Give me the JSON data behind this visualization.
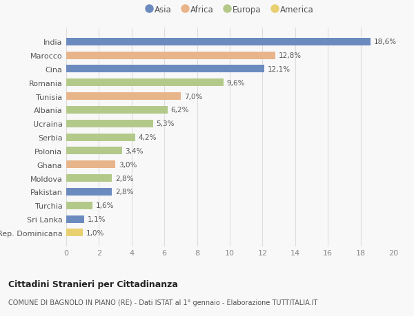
{
  "categories": [
    "India",
    "Marocco",
    "Cina",
    "Romania",
    "Tunisia",
    "Albania",
    "Ucraina",
    "Serbia",
    "Polonia",
    "Ghana",
    "Moldova",
    "Pakistan",
    "Turchia",
    "Sri Lanka",
    "Rep. Dominicana"
  ],
  "values": [
    18.6,
    12.8,
    12.1,
    9.6,
    7.0,
    6.2,
    5.3,
    4.2,
    3.4,
    3.0,
    2.8,
    2.8,
    1.6,
    1.1,
    1.0
  ],
  "labels": [
    "18,6%",
    "12,8%",
    "12,1%",
    "9,6%",
    "7,0%",
    "6,2%",
    "5,3%",
    "4,2%",
    "3,4%",
    "3,0%",
    "2,8%",
    "2,8%",
    "1,6%",
    "1,1%",
    "1,0%"
  ],
  "continents": [
    "Asia",
    "Africa",
    "Asia",
    "Europa",
    "Africa",
    "Europa",
    "Europa",
    "Europa",
    "Europa",
    "Africa",
    "Europa",
    "Asia",
    "Europa",
    "Asia",
    "America"
  ],
  "colors": {
    "Asia": "#6b8bbf",
    "Africa": "#e8b48a",
    "Europa": "#b3c98a",
    "America": "#e8d070"
  },
  "legend_order": [
    "Asia",
    "Africa",
    "Europa",
    "America"
  ],
  "title1": "Cittadini Stranieri per Cittadinanza",
  "title2": "COMUNE DI BAGNOLO IN PIANO (RE) - Dati ISTAT al 1° gennaio - Elaborazione TUTTITALIA.IT",
  "xlim": [
    0,
    20
  ],
  "xticks": [
    0,
    2,
    4,
    6,
    8,
    10,
    12,
    14,
    16,
    18,
    20
  ],
  "background_color": "#f8f8f8",
  "grid_color": "#dddddd",
  "bar_height": 0.55
}
